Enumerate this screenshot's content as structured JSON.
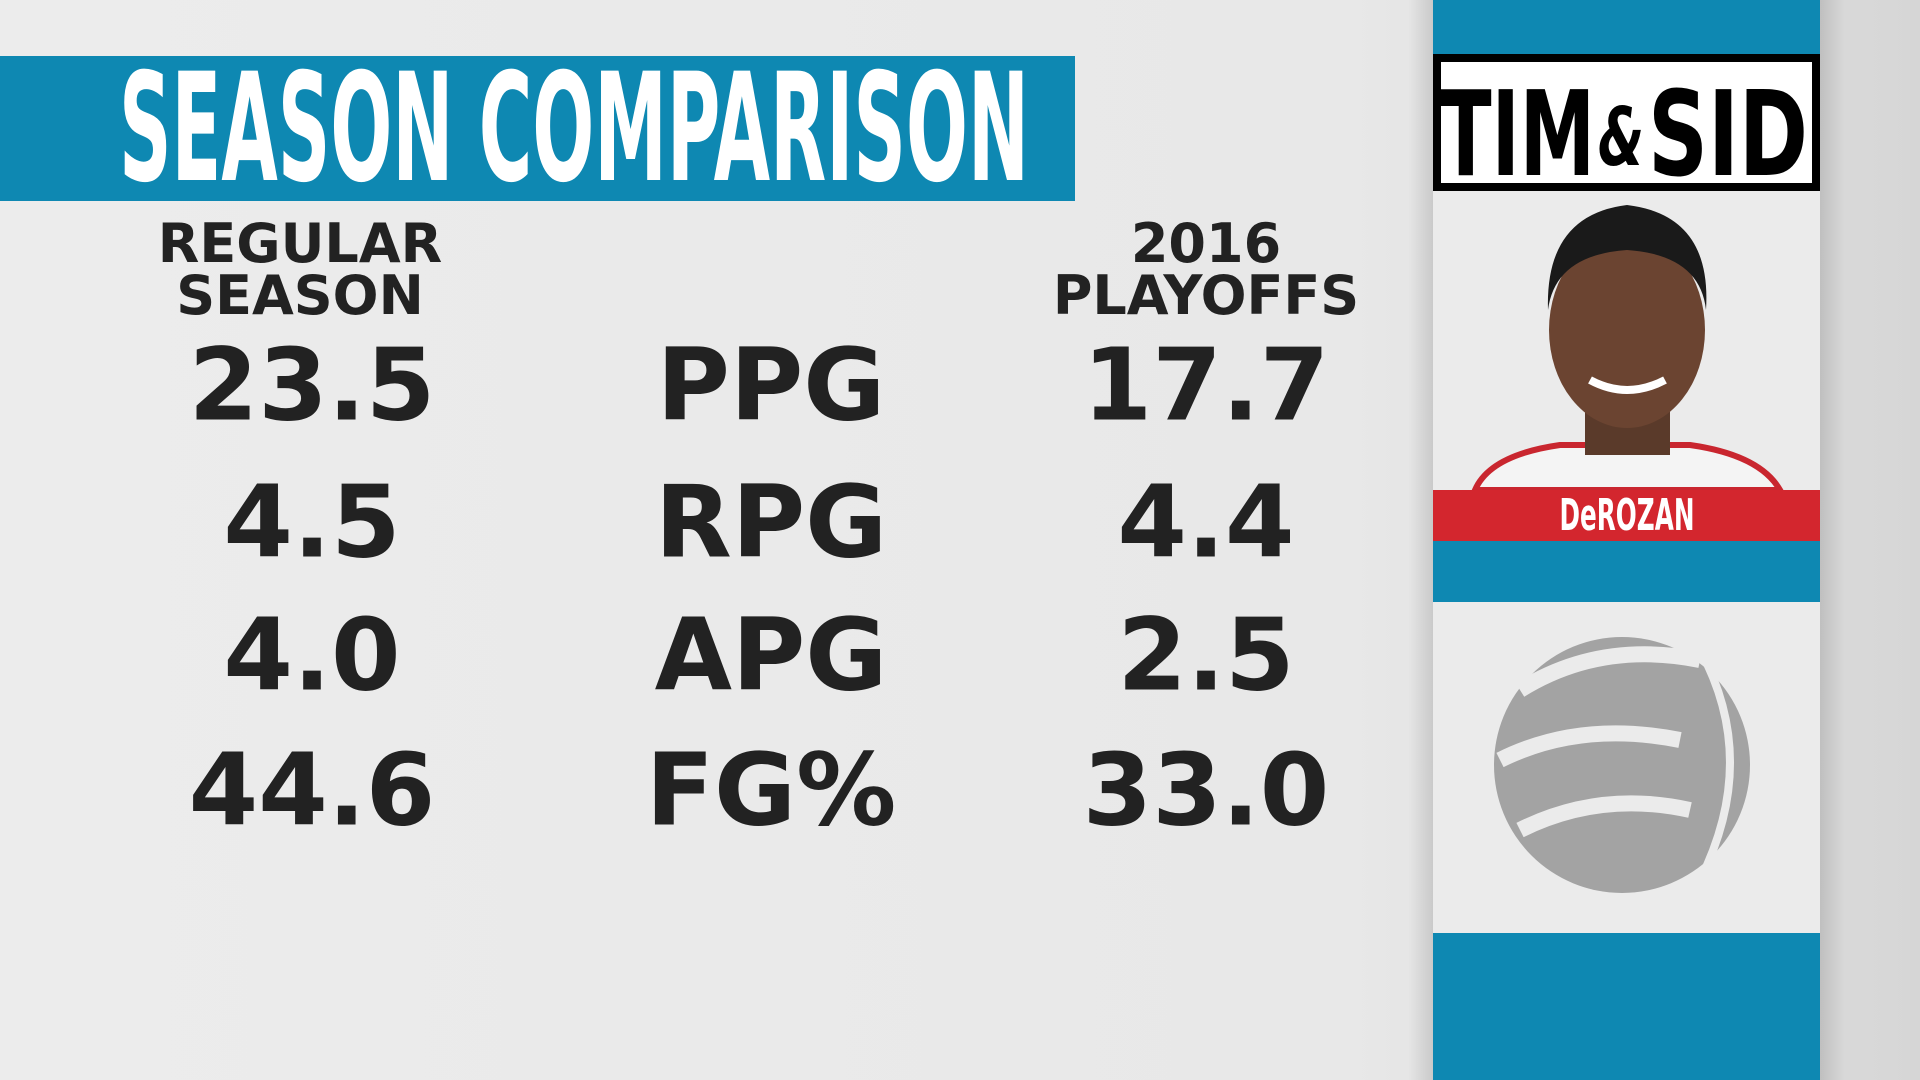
{
  "title": "SEASON COMPARISON",
  "columns": {
    "left": [
      "REGULAR",
      "SEASON"
    ],
    "right": [
      "2016",
      "PLAYOFFS"
    ]
  },
  "rows": [
    {
      "left": "23.5",
      "label": "PPG",
      "right": "17.7"
    },
    {
      "left": "4.5",
      "label": "RPG",
      "right": "4.4"
    },
    {
      "left": "4.0",
      "label": "APG",
      "right": "2.5"
    },
    {
      "left": "44.6",
      "label": "FG%",
      "right": "33.0"
    }
  ],
  "logo": {
    "left": "TIM",
    "amp": "&",
    "right": "SID"
  },
  "player": "DeROZAN"
}
